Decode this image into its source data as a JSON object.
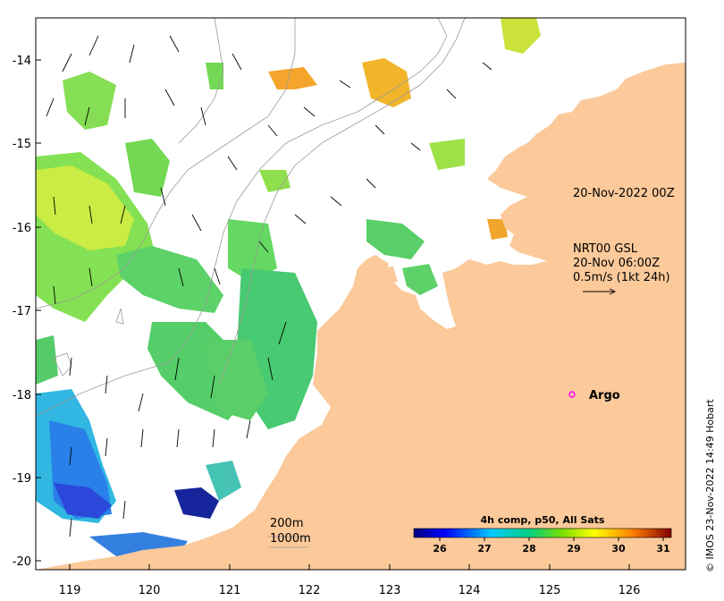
{
  "map": {
    "lon_ticks": [
      "119",
      "120",
      "121",
      "122",
      "123",
      "124",
      "125",
      "126"
    ],
    "lat_ticks": [
      "-14",
      "-15",
      "-16",
      "-17",
      "-18",
      "-19",
      "-20"
    ],
    "lon_range": [
      118.6,
      126.8
    ],
    "lat_range": [
      -20.05,
      -13.5
    ]
  },
  "annotations": {
    "timestamp": "20-Nov-2022 00Z",
    "current_label_1": "NRT00 GSL",
    "current_label_2": "20-Nov 06:00Z",
    "current_label_3": "0.5m/s (1kt 24h)",
    "argo": "Argo",
    "isobath_200": "200m",
    "isobath_1000": "1000m"
  },
  "colorbar": {
    "title": "4h comp, p50, All Sats",
    "ticks": [
      "26",
      "27",
      "28",
      "29",
      "30",
      "31"
    ],
    "range": [
      25.3,
      31.1
    ]
  },
  "credit": "© IMOS 23-Nov-2022 14:49 Hobart",
  "colors": {
    "land": "#fbc99a",
    "ocean": "#ffffff",
    "argo_marker": "#ff00ff"
  }
}
